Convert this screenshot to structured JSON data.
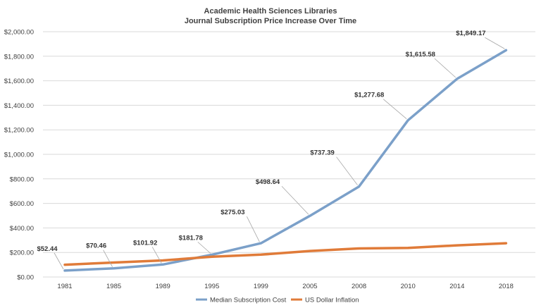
{
  "chart_data": {
    "type": "line",
    "title": "Academic Health Sciences Libraries",
    "subtitle": "Journal Subscription Price Increase Over Time",
    "categories": [
      "1981",
      "1985",
      "1989",
      "1995",
      "1999",
      "2005",
      "2008",
      "2010",
      "2014",
      "2018"
    ],
    "y_ticks": [
      "$0.00",
      "$200.00",
      "$400.00",
      "$600.00",
      "$800.00",
      "$1,000.00",
      "$1,200.00",
      "$1,400.00",
      "$1,600.00",
      "$1,800.00",
      "$2,000.00"
    ],
    "ylim": [
      0,
      2000
    ],
    "grid": true,
    "legend_position": "bottom",
    "series": [
      {
        "name": "Median Subscription Cost",
        "color": "#7ba0c9",
        "values": [
          52.44,
          70.46,
          101.92,
          181.78,
          275.03,
          498.64,
          737.39,
          1277.68,
          1615.58,
          1849.17
        ],
        "labels": [
          "$52.44",
          "$70.46",
          "$101.92",
          "$181.78",
          "$275.03",
          "$498.64",
          "$737.39",
          "$1,277.68",
          "$1,615.58",
          "$1,849.17"
        ]
      },
      {
        "name": "US Dollar Inflation",
        "color": "#e07b39",
        "values": [
          100,
          118,
          135,
          165,
          182,
          212,
          233,
          237,
          258,
          275
        ]
      }
    ]
  }
}
